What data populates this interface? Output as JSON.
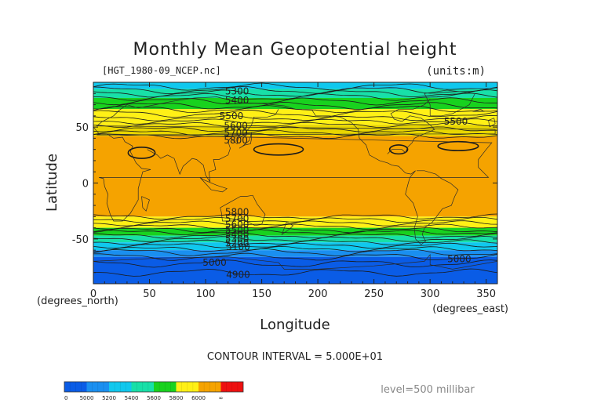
{
  "chart_data": {
    "type": "heatmap",
    "title": "Monthly Mean Geopotential height",
    "file_label": "[HGT_1980-09_NCEP.nc]",
    "units_label": "(units:m)",
    "xlabel": "Longitude",
    "ylabel": "Latitude",
    "x_unit": "(degrees_east)",
    "y_unit": "(degrees_north)",
    "xlim": [
      0,
      360
    ],
    "ylim": [
      -90,
      90
    ],
    "xticks": [
      0,
      50,
      100,
      150,
      200,
      250,
      300,
      350
    ],
    "yticks": [
      -50,
      0,
      50
    ],
    "contour_interval_text": "CONTOUR INTERVAL = 5.000E+01",
    "level_text": "level=500 millibar",
    "colorbar": {
      "labels": [
        "0",
        "5000",
        "5200",
        "5400",
        "5600",
        "5800",
        "6000",
        "∞"
      ],
      "colors": [
        "#0a5ce6",
        "#1a8ff0",
        "#10c8ee",
        "#18e0a8",
        "#18d21e",
        "#fff016",
        "#f5a300",
        "#ee1010"
      ]
    },
    "bands": [
      {
        "lat_top": 90,
        "lat_bot": 84,
        "value": 5350,
        "color": "#10c8ee"
      },
      {
        "lat_top": 84,
        "lat_bot": 76,
        "value": 5450,
        "color": "#18e0a8"
      },
      {
        "lat_top": 76,
        "lat_bot": 66,
        "value": 5550,
        "color": "#18d21e"
      },
      {
        "lat_top": 66,
        "lat_bot": 52,
        "value": 5700,
        "color": "#fff016"
      },
      {
        "lat_top": 52,
        "lat_bot": 42,
        "value": 5800,
        "color": "#e9d600"
      },
      {
        "lat_top": 42,
        "lat_bot": -30,
        "value": 5850,
        "color": "#f5a300"
      },
      {
        "lat_top": -30,
        "lat_bot": -40,
        "value": 5700,
        "color": "#fff016"
      },
      {
        "lat_top": -40,
        "lat_bot": -47,
        "value": 5550,
        "color": "#18d21e"
      },
      {
        "lat_top": -47,
        "lat_bot": -53,
        "value": 5450,
        "color": "#18e0a8"
      },
      {
        "lat_top": -53,
        "lat_bot": -60,
        "value": 5300,
        "color": "#10c8ee"
      },
      {
        "lat_top": -60,
        "lat_bot": -66,
        "value": 5150,
        "color": "#1a8ff0"
      },
      {
        "lat_top": -66,
        "lat_bot": -90,
        "value": 4950,
        "color": "#0a5ce6"
      }
    ],
    "contour_labels": [
      {
        "text": "5300",
        "x": 128,
        "y": 82
      },
      {
        "text": "5400",
        "x": 128,
        "y": 74
      },
      {
        "text": "5500",
        "x": 123,
        "y": 60
      },
      {
        "text": "5500",
        "x": 323,
        "y": 55
      },
      {
        "text": "5600",
        "x": 127,
        "y": 51
      },
      {
        "text": "5700",
        "x": 127,
        "y": 45
      },
      {
        "text": "5800",
        "x": 127,
        "y": 38
      },
      {
        "text": "5800",
        "x": 128,
        "y": -26
      },
      {
        "text": "5700",
        "x": 128,
        "y": -32
      },
      {
        "text": "5600",
        "x": 128,
        "y": -37
      },
      {
        "text": "5500",
        "x": 128,
        "y": -42
      },
      {
        "text": "5400",
        "x": 128,
        "y": -46
      },
      {
        "text": "5300",
        "x": 128,
        "y": -50
      },
      {
        "text": "5200",
        "x": 128,
        "y": -54
      },
      {
        "text": "5100",
        "x": 129,
        "y": -57
      },
      {
        "text": "5000",
        "x": 108,
        "y": -71
      },
      {
        "text": "5000",
        "x": 326,
        "y": -68
      },
      {
        "text": "4900",
        "x": 129,
        "y": -82
      }
    ]
  }
}
